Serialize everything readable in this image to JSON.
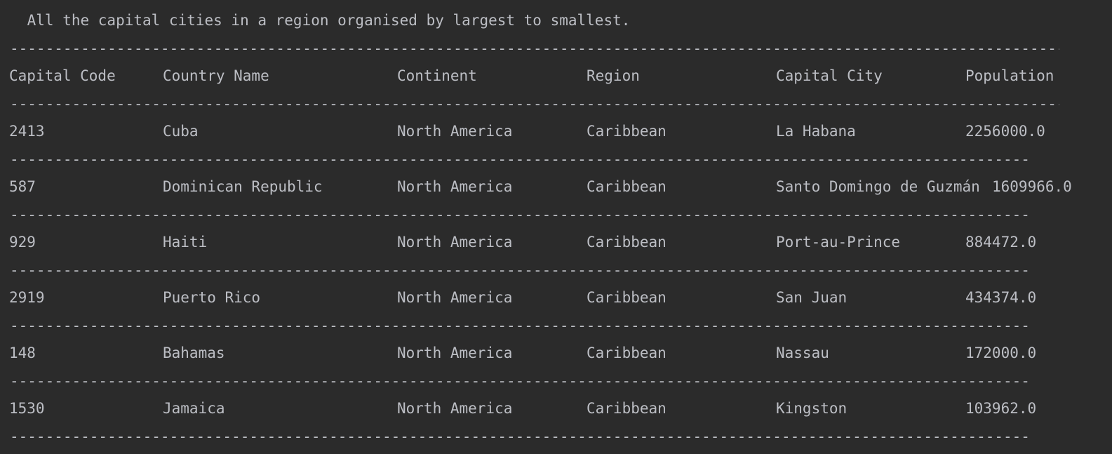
{
  "console": {
    "title": " All the capital cities in a region organised by largest to smallest.",
    "separator_long": "--------------------------------------------------------------------------------------------------------------------------------------------------------------------------------------------",
    "separator_short": "--------------------------------------------------------------------------------------------------------------------------------------------------------------------------------------------",
    "columns": [
      "Capital Code",
      "Country Name",
      "Continent",
      "Region",
      "Capital City",
      "Population"
    ],
    "rows": [
      [
        "2413",
        "Cuba",
        "North America",
        "Caribbean",
        "La Habana",
        "2256000.0"
      ],
      [
        "587",
        "Dominican Republic",
        "North America",
        "Caribbean",
        "Santo Domingo de Guzmán",
        "1609966.0"
      ],
      [
        "929",
        "Haiti",
        "North America",
        "Caribbean",
        "Port-au-Prince",
        "884472.0"
      ],
      [
        "2919",
        "Puerto Rico",
        "North America",
        "Caribbean",
        "San Juan",
        "434374.0"
      ],
      [
        "148",
        "Bahamas",
        "North America",
        "Caribbean",
        "Nassau",
        "172000.0"
      ],
      [
        "1530",
        "Jamaica",
        "North America",
        "Caribbean",
        "Kingston",
        "103962.0"
      ]
    ]
  },
  "colors": {
    "background": "#2b2b2b",
    "text": "#bcbec4"
  }
}
